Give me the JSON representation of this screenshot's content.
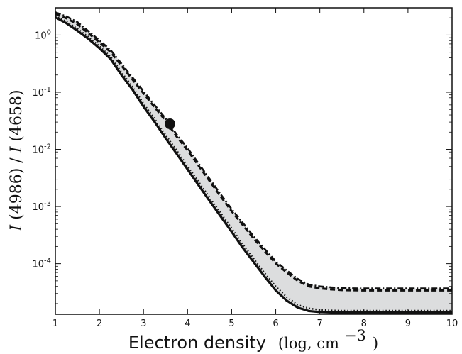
{
  "chart_data": {
    "type": "line",
    "xlabel": {
      "main": "Electron density",
      "unit_prefix": "(log, cm",
      "unit_power": "−3",
      "unit_suffix": ")"
    },
    "ylabel": {
      "numerator": "I",
      "numerator_wave": "(4986)",
      "separator": "/",
      "denominator": "I",
      "denominator_wave": "(4658)"
    },
    "xlim": [
      1,
      10
    ],
    "ylim": [
      1.3e-05,
      3.0
    ],
    "yscale": "log",
    "grid": false,
    "x_ticks": [
      1,
      2,
      3,
      4,
      5,
      6,
      7,
      8,
      9,
      10
    ],
    "x_tick_labels": [
      "1",
      "2",
      "3",
      "4",
      "5",
      "6",
      "7",
      "8",
      "9",
      "10"
    ],
    "y_ticks": [
      0.0001,
      0.001,
      0.01,
      0.1,
      1
    ],
    "y_tick_labels": [
      {
        "base": "10",
        "exp": "-4"
      },
      {
        "base": "10",
        "exp": "-3"
      },
      {
        "base": "10",
        "exp": "-2"
      },
      {
        "base": "10",
        "exp": "-1"
      },
      {
        "base": "10",
        "exp": "0"
      }
    ],
    "colors": {
      "line": "#111111",
      "band_fill": "#dcddde",
      "axis": "#111111"
    },
    "band": {
      "x": [
        1.0,
        1.25,
        1.5,
        1.75,
        2.0,
        2.25,
        2.5,
        2.75,
        3.0,
        3.25,
        3.5,
        3.75,
        4.0,
        4.25,
        4.5,
        4.75,
        5.0,
        5.25,
        5.5,
        5.75,
        6.0,
        6.25,
        6.5,
        6.75,
        7.0,
        7.25,
        7.5,
        7.75,
        8.0,
        8.25,
        8.5,
        8.75,
        9.0,
        9.25,
        9.5,
        9.75,
        10.0
      ],
      "upper": [
        2.5,
        2.12,
        1.69,
        1.17,
        0.806,
        0.552,
        0.316,
        0.181,
        0.104,
        0.0596,
        0.0347,
        0.0183,
        0.0105,
        0.00564,
        0.00304,
        0.00164,
        0.0009,
        0.00052,
        0.0003,
        0.00018,
        0.00011,
        7.6e-05,
        5.4e-05,
        4.3e-05,
        4e-05,
        3.85e-05,
        3.75e-05,
        3.7e-05,
        3.68e-05,
        3.68e-05,
        3.68e-05,
        3.68e-05,
        3.68e-05,
        3.68e-05,
        3.68e-05,
        3.68e-05,
        3.68e-05
      ],
      "lower": [
        2.05,
        1.61,
        1.19,
        0.856,
        0.587,
        0.383,
        0.2,
        0.111,
        0.0561,
        0.0304,
        0.0157,
        0.0084,
        0.00445,
        0.00235,
        0.00125,
        0.00067,
        0.00036,
        0.00019,
        0.000106,
        5.9e-05,
        3.4e-05,
        2.25e-05,
        1.7e-05,
        1.48e-05,
        1.42e-05,
        1.4e-05,
        1.4e-05,
        1.4e-05,
        1.4e-05,
        1.4e-05,
        1.4e-05,
        1.4e-05,
        1.4e-05,
        1.4e-05,
        1.4e-05,
        1.4e-05,
        1.4e-05
      ]
    },
    "series": [
      {
        "style": "solid",
        "x": [
          1.0,
          1.25,
          1.5,
          1.75,
          2.0,
          2.25,
          2.5,
          2.75,
          3.0,
          3.25,
          3.5,
          3.75,
          4.0,
          4.25,
          4.5,
          4.75,
          5.0,
          5.25,
          5.5,
          5.75,
          6.0,
          6.25,
          6.5,
          6.75,
          7.0,
          7.25,
          7.5,
          7.75,
          8.0,
          8.25,
          8.5,
          8.75,
          9.0,
          9.25,
          9.5,
          9.75,
          10.0
        ],
        "y": [
          2.05,
          1.61,
          1.19,
          0.856,
          0.587,
          0.383,
          0.2,
          0.111,
          0.0561,
          0.0304,
          0.0157,
          0.0084,
          0.00445,
          0.00235,
          0.00125,
          0.00067,
          0.00036,
          0.00019,
          0.000106,
          5.9e-05,
          3.4e-05,
          2.25e-05,
          1.7e-05,
          1.48e-05,
          1.42e-05,
          1.4e-05,
          1.4e-05,
          1.4e-05,
          1.4e-05,
          1.4e-05,
          1.4e-05,
          1.4e-05,
          1.4e-05,
          1.4e-05,
          1.4e-05,
          1.4e-05,
          1.4e-05
        ]
      },
      {
        "style": "dotted",
        "x": [
          1.0,
          1.25,
          1.5,
          1.75,
          2.0,
          2.25,
          2.5,
          2.75,
          3.0,
          3.25,
          3.5,
          3.75,
          4.0,
          4.25,
          4.5,
          4.75,
          5.0,
          5.25,
          5.5,
          5.75,
          6.0,
          6.25,
          6.5,
          6.75,
          7.0,
          7.25,
          7.5,
          7.75,
          8.0,
          8.25,
          8.5,
          8.75,
          9.0,
          9.25,
          9.5,
          9.75,
          10.0
        ],
        "y": [
          2.18,
          1.72,
          1.29,
          0.93,
          0.64,
          0.42,
          0.224,
          0.124,
          0.0633,
          0.0344,
          0.0179,
          0.00963,
          0.00511,
          0.0027,
          0.00144,
          0.00077,
          0.000413,
          0.00022,
          0.000122,
          6.8e-05,
          4e-05,
          2.6e-05,
          1.9e-05,
          1.65e-05,
          1.55e-05,
          1.52e-05,
          1.5e-05,
          1.5e-05,
          1.5e-05,
          1.5e-05,
          1.5e-05,
          1.5e-05,
          1.5e-05,
          1.5e-05,
          1.5e-05,
          1.5e-05,
          1.5e-05
        ]
      },
      {
        "style": "dashed",
        "x": [
          1.0,
          1.25,
          1.5,
          1.75,
          2.0,
          2.25,
          2.5,
          2.75,
          3.0,
          3.25,
          3.5,
          3.75,
          4.0,
          4.25,
          4.5,
          4.75,
          5.0,
          5.25,
          5.5,
          5.75,
          6.0,
          6.25,
          6.5,
          6.75,
          7.0,
          7.25,
          7.5,
          7.75,
          8.0,
          8.25,
          8.5,
          8.75,
          9.0,
          9.25,
          9.5,
          9.75,
          10.0
        ],
        "y": [
          2.35,
          1.97,
          1.55,
          1.08,
          0.742,
          0.508,
          0.292,
          0.167,
          0.0956,
          0.0547,
          0.0318,
          0.0168,
          0.00963,
          0.00517,
          0.00279,
          0.0015,
          0.000826,
          0.000477,
          0.000275,
          0.000165,
          0.000101,
          7e-05,
          5e-05,
          4e-05,
          3.7e-05,
          3.55e-05,
          3.45e-05,
          3.42e-05,
          3.4e-05,
          3.4e-05,
          3.4e-05,
          3.4e-05,
          3.4e-05,
          3.4e-05,
          3.4e-05,
          3.4e-05,
          3.4e-05
        ]
      },
      {
        "style": "dashdot",
        "x": [
          1.0,
          1.25,
          1.5,
          1.75,
          2.0,
          2.25,
          2.5,
          2.75,
          3.0,
          3.25,
          3.5,
          3.75,
          4.0,
          4.25,
          4.5,
          4.75,
          5.0,
          5.25,
          5.5,
          5.75,
          6.0,
          6.25,
          6.5,
          6.75,
          7.0,
          7.25,
          7.5,
          7.75,
          8.0,
          8.25,
          8.5,
          8.75,
          9.0,
          9.25,
          9.5,
          9.75,
          10.0
        ],
        "y": [
          2.5,
          2.12,
          1.69,
          1.17,
          0.806,
          0.552,
          0.316,
          0.181,
          0.104,
          0.0596,
          0.0347,
          0.0183,
          0.0105,
          0.00564,
          0.00304,
          0.00164,
          0.0009,
          0.00052,
          0.0003,
          0.00018,
          0.00011,
          7.6e-05,
          5.4e-05,
          4.3e-05,
          4e-05,
          3.85e-05,
          3.75e-05,
          3.7e-05,
          3.68e-05,
          3.68e-05,
          3.68e-05,
          3.68e-05,
          3.68e-05,
          3.68e-05,
          3.68e-05,
          3.68e-05,
          3.68e-05
        ]
      }
    ],
    "measurement": {
      "x": 3.6,
      "y": 0.028,
      "y_err_low": 0.022,
      "y_err_high": 0.032
    }
  }
}
